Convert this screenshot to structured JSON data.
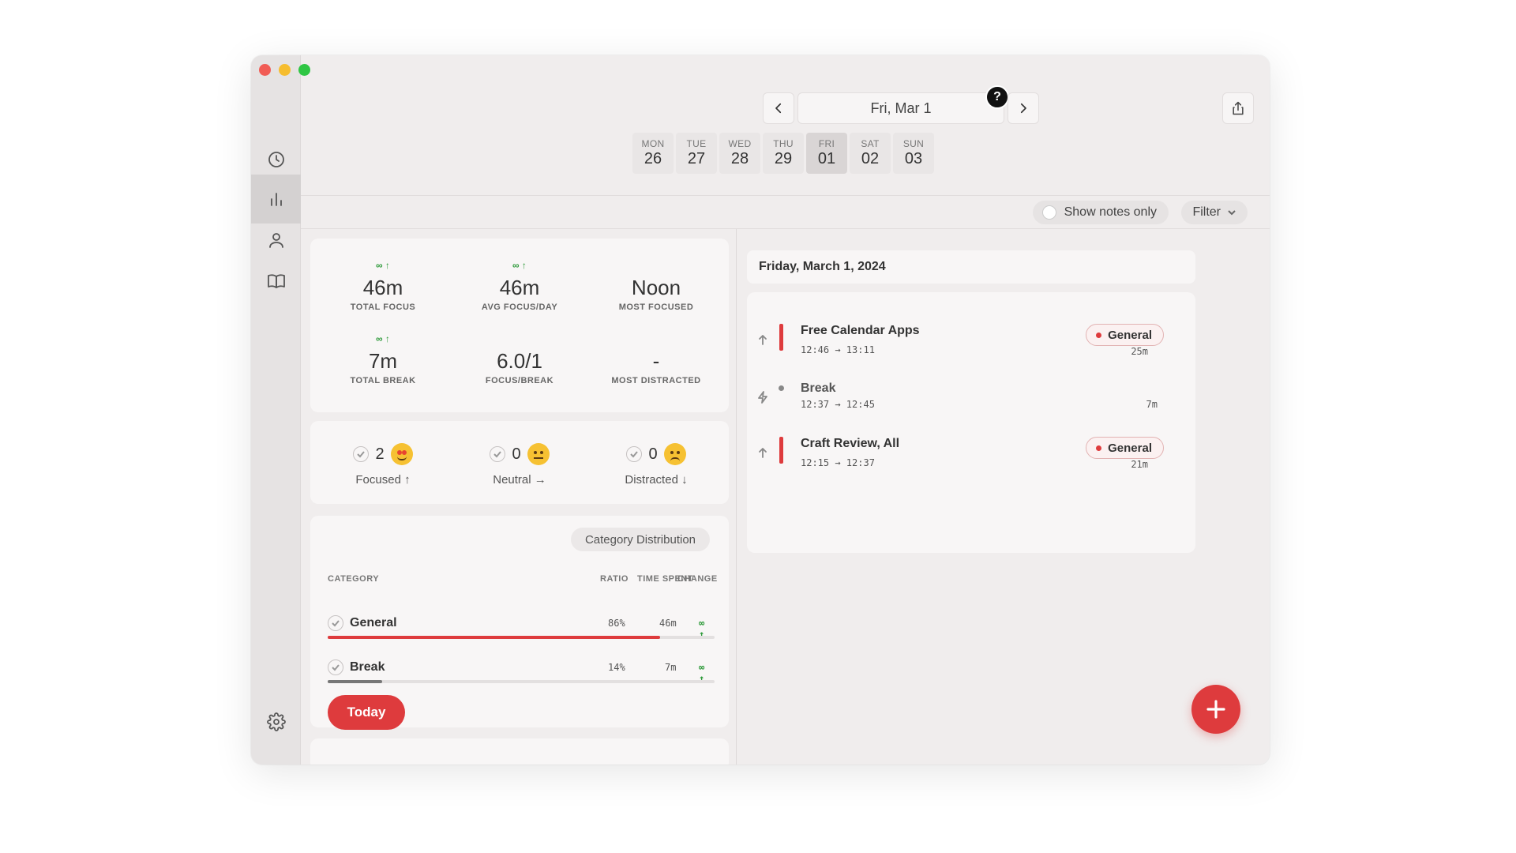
{
  "header": {
    "date_label": "Fri, Mar 1",
    "help_label": "?",
    "week": [
      {
        "name": "MON",
        "num": "26"
      },
      {
        "name": "TUE",
        "num": "27"
      },
      {
        "name": "WED",
        "num": "28"
      },
      {
        "name": "THU",
        "num": "29"
      },
      {
        "name": "FRI",
        "num": "01"
      },
      {
        "name": "SAT",
        "num": "02"
      },
      {
        "name": "SUN",
        "num": "03"
      }
    ]
  },
  "sidebar": {
    "items": [
      {
        "icon": "clock-icon"
      },
      {
        "icon": "bar-chart-icon",
        "active": true
      },
      {
        "icon": "person-icon"
      },
      {
        "icon": "book-icon"
      },
      {
        "icon": "gear-icon"
      }
    ]
  },
  "toolbar": {
    "show_notes_label": "Show notes only",
    "filter_label": "Filter"
  },
  "stats": [
    {
      "trend": "∞ ↑",
      "value": "46m",
      "label": "TOTAL FOCUS"
    },
    {
      "trend": "∞ ↑",
      "value": "46m",
      "label": "AVG FOCUS/DAY"
    },
    {
      "trend": "",
      "value": "Noon",
      "label": "MOST FOCUSED"
    },
    {
      "trend": "∞ ↑",
      "value": "7m",
      "label": "TOTAL BREAK"
    },
    {
      "trend": "",
      "value": "6.0/1",
      "label": "FOCUS/BREAK"
    },
    {
      "trend": "",
      "value": "-",
      "label": "MOST DISTRACTED"
    }
  ],
  "moods": [
    {
      "count": "2",
      "label": "Focused ↑",
      "emoji": "star-struck-emoji"
    },
    {
      "count": "0",
      "label": "Neutral →",
      "emoji": "neutral-face-emoji"
    },
    {
      "count": "0",
      "label": "Distracted ↓",
      "emoji": "pensive-face-emoji"
    }
  ],
  "categories": {
    "button_label": "Category Distribution",
    "headers": {
      "category": "CATEGORY",
      "ratio": "RATIO",
      "time": "TIME SPENT",
      "change": "CHANGE"
    },
    "rows": [
      {
        "name": "General",
        "ratio": "86%",
        "ratio_value": 0.86,
        "time": "46m",
        "change": "∞ ↑",
        "color": "#de3b3d"
      },
      {
        "name": "Break",
        "ratio": "14%",
        "ratio_value": 0.14,
        "time": "7m",
        "change": "∞ ↑",
        "color": "#777777"
      }
    ],
    "today_label": "Today"
  },
  "timeline": {
    "day_title": "Friday, March 1, 2024",
    "sessions": [
      {
        "title": "Free Calendar Apps",
        "time": "12:46 → 13:11",
        "tag": "General",
        "duration": "25m",
        "kind": "focus"
      },
      {
        "title": "Break",
        "time": "12:37 → 12:45",
        "tag": "",
        "duration": "7m",
        "kind": "break"
      },
      {
        "title": "Craft Review, All",
        "time": "12:15 → 12:37",
        "tag": "General",
        "duration": "21m",
        "kind": "focus"
      }
    ]
  },
  "colors": {
    "accent": "#de3b3d",
    "trend_positive": "#2e9a3a"
  }
}
